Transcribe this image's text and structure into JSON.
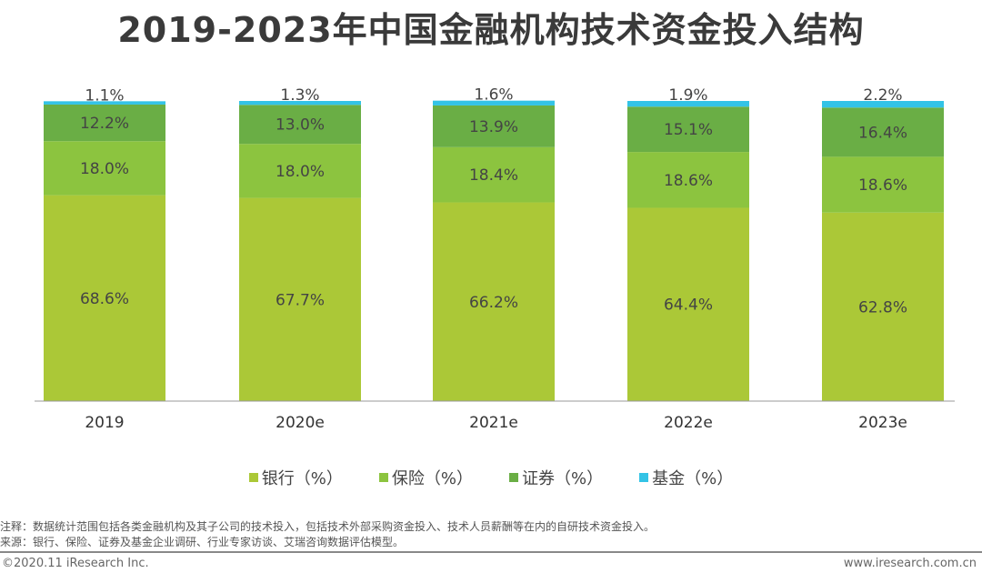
{
  "title": "2019-2023年中国金融机构技术资金投入结构",
  "chart_data": {
    "type": "bar",
    "stacked": true,
    "title": "2019-2023年中国金融机构技术资金投入结构",
    "categories": [
      "2019",
      "2020e",
      "2021e",
      "2022e",
      "2023e"
    ],
    "series": [
      {
        "name": "银行（%）",
        "color": "#abc837",
        "values": [
          68.6,
          67.7,
          66.2,
          64.4,
          62.8
        ]
      },
      {
        "name": "保险（%）",
        "color": "#8cc43f",
        "values": [
          18.0,
          18.0,
          18.4,
          18.6,
          18.6
        ]
      },
      {
        "name": "证券（%）",
        "color": "#6aae45",
        "values": [
          12.2,
          13.0,
          13.9,
          15.1,
          16.4
        ]
      },
      {
        "name": "基金（%）",
        "color": "#33c3e6",
        "values": [
          1.1,
          1.3,
          1.6,
          1.9,
          2.2
        ]
      }
    ],
    "ylim": [
      0,
      100
    ],
    "legend": "bottom"
  },
  "notes": {
    "note": "注释：数据统计范围包括各类金融机构及其子公司的技术投入，包括技术外部采购资金投入、技术人员薪酬等在内的自研技术资金投入。",
    "source": "来源：银行、保险、证券及基金企业调研、行业专家访谈、艾瑞咨询数据评估模型。"
  },
  "footer": {
    "copyright": "©2020.11 iResearch Inc.",
    "website": "www.iresearch.com.cn"
  }
}
